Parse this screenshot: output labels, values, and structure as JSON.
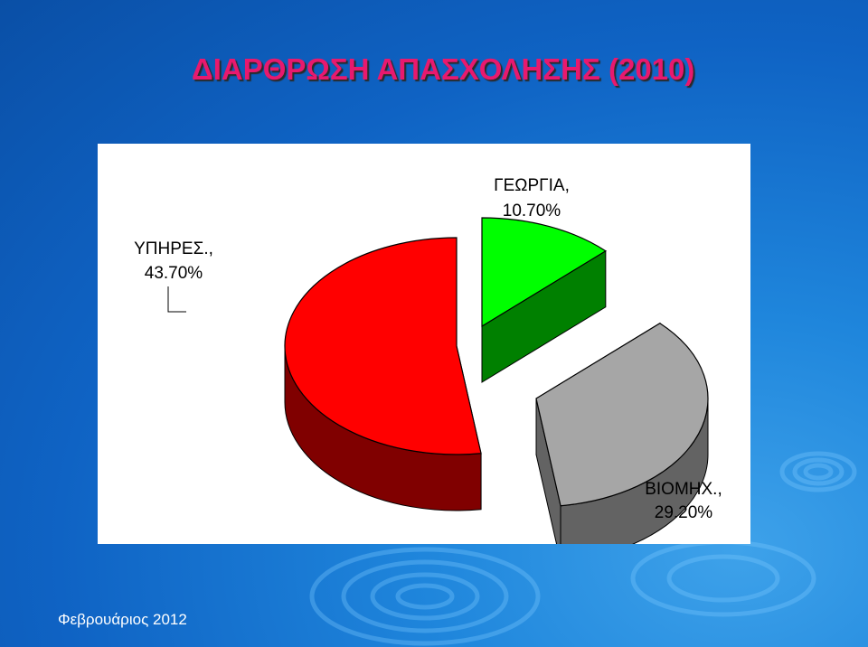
{
  "slide": {
    "title": "ΔΙΑΡΘΡΩΣΗ ΑΠΑΣΧΟΛΗΣΗΣ (2010)",
    "footer": "Φεβρουάριος 2012"
  },
  "chart_data": {
    "type": "pie",
    "title": "",
    "style": "exploded 3D pie",
    "legend": "none",
    "slices": [
      {
        "label": "ΓΕΩΡΓΙΑ,",
        "value": 10.7,
        "value_label": "10.70%",
        "color": "#00ff00",
        "side_color": "#008000"
      },
      {
        "label": "ΒΙΟΜΗΧ.,",
        "value": 29.2,
        "value_label": "29.20%",
        "color": "#a6a6a6",
        "side_color": "#636363"
      },
      {
        "label": "ΥΠΗΡΕΣ.,",
        "value": 43.7,
        "value_label": "43.70%",
        "color": "#ff0000",
        "side_color": "#800000"
      }
    ]
  }
}
